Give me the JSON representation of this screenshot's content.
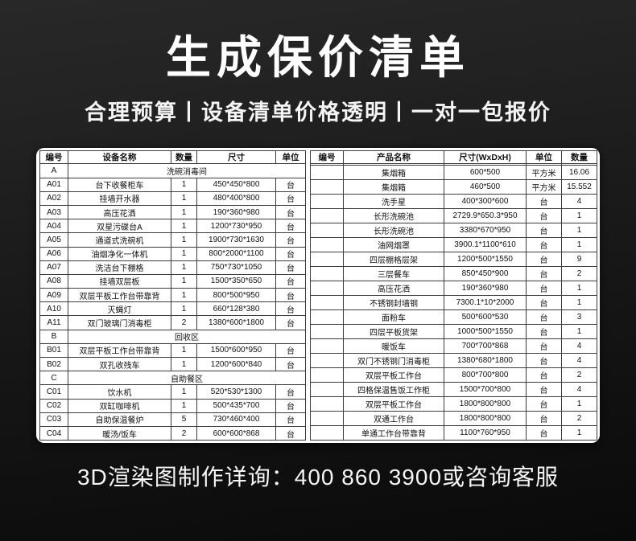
{
  "page": {
    "title": "生成保价清单",
    "subtitle": "合理预算丨设备清单价格透明丨一对一包报价",
    "footer": "3D渲染图制作详询：400 860 3900或咨询客服"
  },
  "colors": {
    "background_top": "#282828",
    "background_bottom": "#0a0a0a",
    "panel": "#ffffff",
    "table_border": "#3c3c3c",
    "text_light": "#ffffff",
    "text_dark": "#111111"
  },
  "left_table": {
    "headers": [
      "编号",
      "设备名称",
      "数量",
      "尺寸",
      "单位"
    ],
    "rows": [
      {
        "section": true,
        "code": "A",
        "name": "洗碗消毒间"
      },
      {
        "code": "A01",
        "name": "台下收餐柜车",
        "qty": "1",
        "size": "450*450*800",
        "unit": "台"
      },
      {
        "code": "A02",
        "name": "挂墙开水器",
        "qty": "1",
        "size": "480*400*800",
        "unit": "台"
      },
      {
        "code": "A03",
        "name": "高压花洒",
        "qty": "1",
        "size": "190*360*980",
        "unit": "台"
      },
      {
        "code": "A04",
        "name": "双星污碟台A",
        "qty": "1",
        "size": "1200*730*950",
        "unit": "台"
      },
      {
        "code": "A05",
        "name": "通道式洗碗机",
        "qty": "1",
        "size": "1900*730*1630",
        "unit": "台"
      },
      {
        "code": "A06",
        "name": "油烟净化一体机",
        "qty": "1",
        "size": "800*2000*1100",
        "unit": "台"
      },
      {
        "code": "A07",
        "name": "洗洁台下棚格",
        "qty": "1",
        "size": "750*730*1050",
        "unit": "台"
      },
      {
        "code": "A08",
        "name": "挂墙双层板",
        "qty": "1",
        "size": "1500*350*650",
        "unit": "台"
      },
      {
        "code": "A09",
        "name": "双层平板工作台带靠背",
        "qty": "1",
        "size": "800*500*950",
        "unit": "台"
      },
      {
        "code": "A10",
        "name": "灭蝇灯",
        "qty": "1",
        "size": "660*128*380",
        "unit": "台"
      },
      {
        "code": "A11",
        "name": "双门玻璃门消毒柜",
        "qty": "2",
        "size": "1380*600*1800",
        "unit": "台"
      },
      {
        "section": true,
        "code": "B",
        "name": "回收区"
      },
      {
        "code": "B01",
        "name": "双层平板工作台带靠背",
        "qty": "1",
        "size": "1500*600*950",
        "unit": "台"
      },
      {
        "code": "B02",
        "name": "双孔收残车",
        "qty": "1",
        "size": "1200*600*840",
        "unit": "台"
      },
      {
        "section": true,
        "code": "C",
        "name": "自助餐区"
      },
      {
        "code": "C01",
        "name": "饮水机",
        "qty": "1",
        "size": "520*530*1300",
        "unit": "台"
      },
      {
        "code": "C02",
        "name": "双缸咖啡机",
        "qty": "1",
        "size": "500*435*700",
        "unit": "台"
      },
      {
        "code": "C03",
        "name": "自助保温餐炉",
        "qty": "5",
        "size": "730*460*400",
        "unit": "台"
      },
      {
        "code": "C04",
        "name": "暖汤/饭车",
        "qty": "2",
        "size": "600*600*868",
        "unit": "台"
      }
    ]
  },
  "right_table": {
    "headers": [
      "编号",
      "产品名称",
      "尺寸(WxDxH)",
      "单位",
      "数量"
    ],
    "rows": [
      {
        "code": "",
        "name": "",
        "size": "",
        "unit": "",
        "qty": ""
      },
      {
        "code": "",
        "name": "集烟箱",
        "size": "600*500",
        "unit": "平方米",
        "qty": "16.06"
      },
      {
        "code": "",
        "name": "集烟箱",
        "size": "460*500",
        "unit": "平方米",
        "qty": "15.552"
      },
      {
        "code": "",
        "name": "洗手星",
        "size": "400*300*600",
        "unit": "台",
        "qty": "4"
      },
      {
        "code": "",
        "name": "长形洗碗池",
        "size": "2729.9*650.3*950",
        "unit": "台",
        "qty": "1"
      },
      {
        "code": "",
        "name": "长形洗碗池",
        "size": "3380*670*950",
        "unit": "台",
        "qty": "1"
      },
      {
        "code": "",
        "name": "油网烟罩",
        "size": "3900.1*1100*610",
        "unit": "台",
        "qty": "1"
      },
      {
        "code": "",
        "name": "四层棚格层架",
        "size": "1200*500*1550",
        "unit": "台",
        "qty": "9"
      },
      {
        "code": "",
        "name": "三层餐车",
        "size": "850*450*900",
        "unit": "台",
        "qty": "2"
      },
      {
        "code": "",
        "name": "高压花洒",
        "size": "190*360*980",
        "unit": "台",
        "qty": "1"
      },
      {
        "code": "",
        "name": "不锈钢封墙钢",
        "size": "7300.1*10*2000",
        "unit": "台",
        "qty": "1"
      },
      {
        "code": "",
        "name": "面粉车",
        "size": "500*600*530",
        "unit": "台",
        "qty": "3"
      },
      {
        "code": "",
        "name": "四层平板货架",
        "size": "1000*500*1550",
        "unit": "台",
        "qty": "1"
      },
      {
        "code": "",
        "name": "暖饭车",
        "size": "700*700*868",
        "unit": "台",
        "qty": "4"
      },
      {
        "code": "",
        "name": "双门不锈钢门消毒柜",
        "size": "1380*680*1800",
        "unit": "台",
        "qty": "4"
      },
      {
        "code": "",
        "name": "双层平板工作台",
        "size": "800*700*800",
        "unit": "台",
        "qty": "2"
      },
      {
        "code": "",
        "name": "四格保温售饭工作柜",
        "size": "1500*700*800",
        "unit": "台",
        "qty": "4"
      },
      {
        "code": "",
        "name": "双层平板工作台",
        "size": "1800*800*800",
        "unit": "台",
        "qty": "1"
      },
      {
        "code": "",
        "name": "双通工作台",
        "size": "1800*800*800",
        "unit": "台",
        "qty": "2"
      },
      {
        "code": "",
        "name": "单通工作台带靠背",
        "size": "1100*760*950",
        "unit": "台",
        "qty": "1"
      }
    ]
  }
}
